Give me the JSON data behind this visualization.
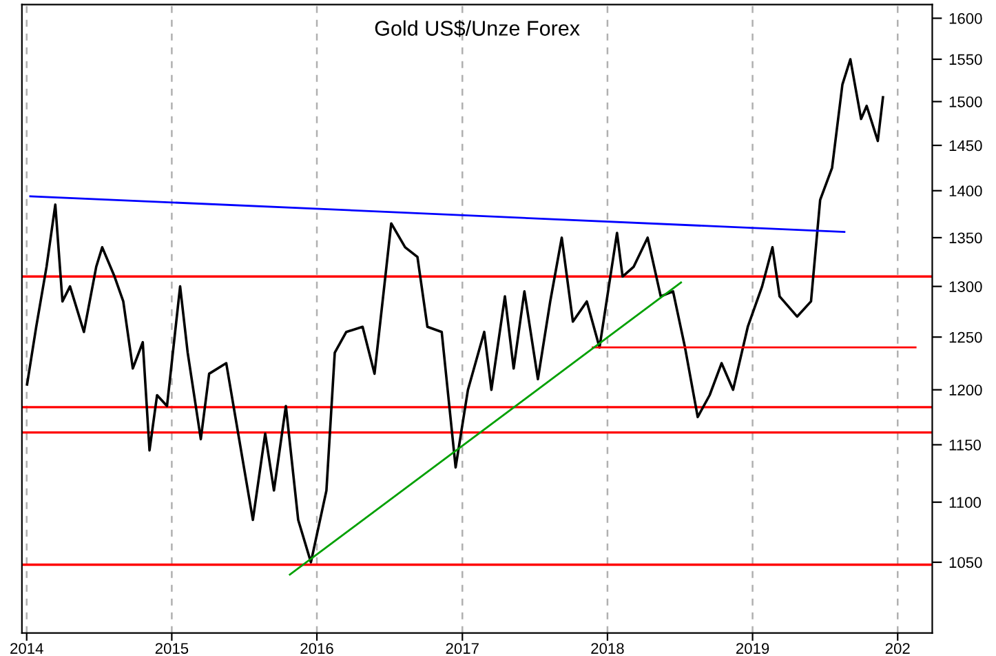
{
  "chart_data": {
    "type": "line",
    "title": "Gold US$/Unze Forex",
    "log": "y",
    "grid": "x",
    "marker": "none",
    "line_style": "solid",
    "xlim": [
      "2013-12-20",
      "2020-03-28"
    ],
    "ylim": [
      994,
      1617
    ],
    "xticks": [
      {
        "value": "2014-01-01",
        "label": "2014"
      },
      {
        "value": "2015-01-01",
        "label": "2015"
      },
      {
        "value": "2016-01-01",
        "label": "2016"
      },
      {
        "value": "2017-01-01",
        "label": "2017"
      },
      {
        "value": "2018-01-01",
        "label": "2018"
      },
      {
        "value": "2019-01-01",
        "label": "2019"
      },
      {
        "value": "2020-01-01",
        "label": "202"
      }
    ],
    "yticks": [
      1050,
      1100,
      1150,
      1200,
      1250,
      1300,
      1350,
      1400,
      1450,
      1500,
      1550,
      1600
    ],
    "ref_lines": [
      {
        "axis": "y",
        "value": 1310,
        "color": "#ff0000"
      },
      {
        "axis": "y",
        "value": 1184,
        "color": "#ff0000"
      },
      {
        "axis": "y",
        "value": 1161,
        "color": "#ff0000"
      },
      {
        "axis": "y",
        "value": 1048,
        "color": "#ff0000"
      }
    ],
    "series": [
      {
        "color": "#000000",
        "x": [
          "2014-01-02",
          "2014-01-25",
          "2014-02-20",
          "2014-03-14",
          "2014-04-01",
          "2014-04-20",
          "2014-05-25",
          "2014-06-25",
          "2014-07-10",
          "2014-08-10",
          "2014-09-01",
          "2014-09-25",
          "2014-10-20",
          "2014-11-06",
          "2014-11-25",
          "2014-12-20",
          "2015-01-22",
          "2015-02-10",
          "2015-03-15",
          "2015-04-05",
          "2015-05-18",
          "2015-06-10",
          "2015-07-24",
          "2015-08-24",
          "2015-09-15",
          "2015-10-15",
          "2015-11-15",
          "2015-12-17",
          "2016-01-25",
          "2016-02-15",
          "2016-03-15",
          "2016-04-25",
          "2016-05-25",
          "2016-06-24",
          "2016-07-06",
          "2016-08-10",
          "2016-09-10",
          "2016-10-05",
          "2016-11-10",
          "2016-12-15",
          "2017-01-15",
          "2017-02-25",
          "2017-03-15",
          "2017-04-18",
          "2017-05-10",
          "2017-06-06",
          "2017-07-10",
          "2017-08-10",
          "2017-09-08",
          "2017-10-06",
          "2017-11-10",
          "2017-12-12",
          "2018-01-25",
          "2018-02-08",
          "2018-03-08",
          "2018-04-12",
          "2018-05-15",
          "2018-06-15",
          "2018-07-15",
          "2018-08-16",
          "2018-09-15",
          "2018-10-15",
          "2018-11-13",
          "2018-12-20",
          "2019-01-25",
          "2019-02-20",
          "2019-03-10",
          "2019-04-23",
          "2019-05-28",
          "2019-06-20",
          "2019-07-20",
          "2019-08-15",
          "2019-09-04",
          "2019-10-01",
          "2019-10-15",
          "2019-11-12",
          "2019-11-25"
        ],
        "values": [
          1205,
          1260,
          1320,
          1385,
          1285,
          1300,
          1255,
          1320,
          1340,
          1310,
          1285,
          1220,
          1245,
          1145,
          1195,
          1185,
          1300,
          1235,
          1155,
          1215,
          1225,
          1175,
          1085,
          1160,
          1110,
          1185,
          1085,
          1050,
          1110,
          1235,
          1255,
          1260,
          1215,
          1320,
          1365,
          1340,
          1330,
          1260,
          1255,
          1130,
          1200,
          1255,
          1200,
          1290,
          1220,
          1295,
          1210,
          1285,
          1350,
          1265,
          1285,
          1240,
          1355,
          1310,
          1320,
          1350,
          1290,
          1295,
          1240,
          1175,
          1195,
          1225,
          1200,
          1260,
          1300,
          1340,
          1290,
          1270,
          1285,
          1390,
          1425,
          1520,
          1550,
          1480,
          1495,
          1455,
          1505
        ]
      },
      {
        "type": "line",
        "color": "#ff0000",
        "x": [
          "2017-11-25",
          "2020-02-15"
        ],
        "values": [
          1240,
          1240
        ]
      },
      {
        "type": "line",
        "color": "#0000ff",
        "x": [
          "2014-01-10",
          "2019-08-20"
        ],
        "values": [
          1394,
          1356
        ]
      },
      {
        "type": "line",
        "color": "#00a000",
        "x": [
          "2015-10-25",
          "2018-07-05"
        ],
        "values": [
          1040,
          1304
        ]
      }
    ]
  }
}
